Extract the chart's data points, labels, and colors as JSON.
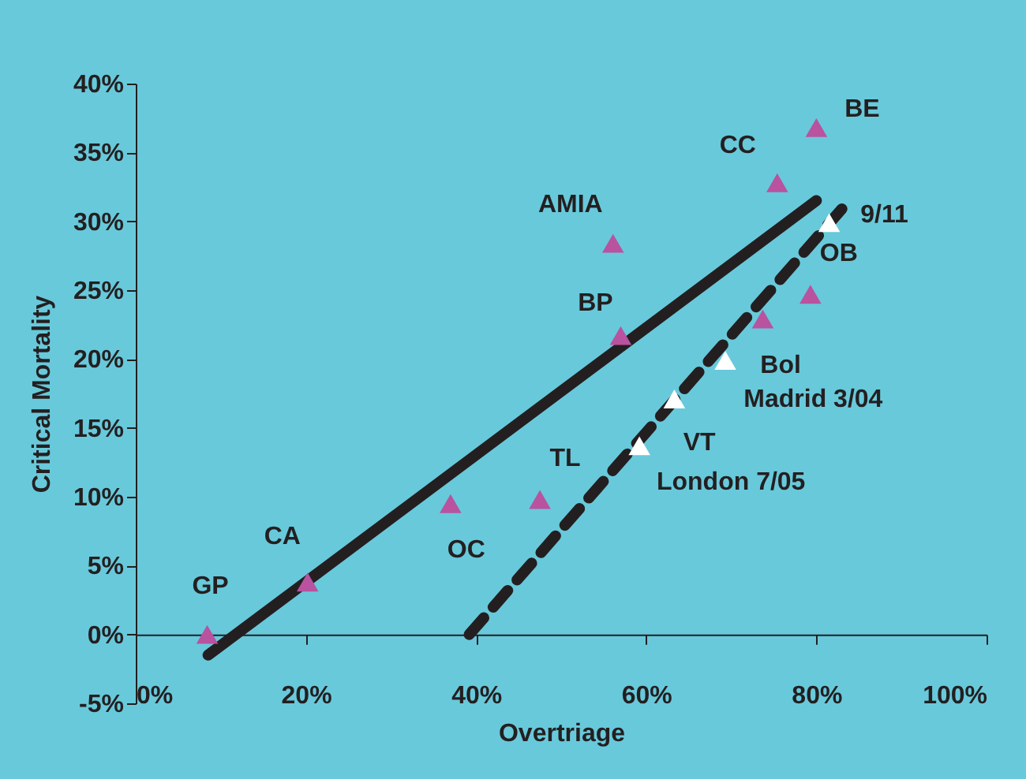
{
  "chart_data": {
    "type": "scatter",
    "xlabel": "Overtriage",
    "ylabel": "Critical Mortality",
    "xlim": [
      0,
      100
    ],
    "xticks": [
      {
        "value": 0,
        "label": "0%"
      },
      {
        "value": 20,
        "label": "20%"
      },
      {
        "value": 40,
        "label": "40%"
      },
      {
        "value": 60,
        "label": "60%"
      },
      {
        "value": 80,
        "label": "80%"
      },
      {
        "value": 100,
        "label": "100%"
      }
    ],
    "ylim": [
      -5,
      40
    ],
    "yticks": [
      {
        "value": -5,
        "label": "-5%"
      },
      {
        "value": 0,
        "label": "0%"
      },
      {
        "value": 5,
        "label": "5%"
      },
      {
        "value": 10,
        "label": "10%"
      },
      {
        "value": 15,
        "label": "15%"
      },
      {
        "value": 20,
        "label": "20%"
      },
      {
        "value": 25,
        "label": "25%"
      },
      {
        "value": 30,
        "label": "30%"
      },
      {
        "value": 35,
        "label": "35%"
      },
      {
        "value": 40,
        "label": "40%"
      }
    ],
    "grid": false,
    "marker": "triangle",
    "series": [
      {
        "type": "line",
        "color": "#231f20",
        "line_style": "solid",
        "marker": "none",
        "x": [
          8.5,
          80
        ],
        "values": [
          -1.5,
          31.5
        ]
      },
      {
        "type": "line",
        "color": "#231f20",
        "line_style": "dashed",
        "marker": "none",
        "x": [
          39.2,
          83
        ],
        "values": [
          0,
          30.9
        ]
      },
      {
        "color": "#b9529f",
        "x": [
          8.4,
          20.2,
          37,
          47.5,
          56.1,
          57,
          75.4,
          80,
          79.3,
          73.7
        ],
        "values": [
          0,
          3.8,
          9.5,
          9.8,
          28.4,
          21.7,
          32.8,
          36.8,
          24.7,
          22.9
        ]
      },
      {
        "color": "#ffffff",
        "x": [
          81.5,
          69.3,
          63.3,
          59.2
        ],
        "values": [
          29.9,
          19.9,
          17.1,
          13.7
        ]
      }
    ],
    "annotations": [
      {
        "text": "GP",
        "x": 8.4,
        "y": 0
      },
      {
        "text": "CA",
        "x": 20.2,
        "y": 3.8
      },
      {
        "text": "OC",
        "x": 37,
        "y": 9.5
      },
      {
        "text": "TL",
        "x": 47.5,
        "y": 9.8
      },
      {
        "text": "AMIA",
        "x": 56.1,
        "y": 28.4
      },
      {
        "text": "BP",
        "x": 57,
        "y": 21.7
      },
      {
        "text": "CC",
        "x": 75.4,
        "y": 32.8
      },
      {
        "text": "BE",
        "x": 80,
        "y": 36.8
      },
      {
        "text": "OB",
        "x": 79.3,
        "y": 24.7
      },
      {
        "text": "9/11",
        "x": 81.5,
        "y": 29.9
      },
      {
        "text": "Bol",
        "x": 69.3,
        "y": 19.9
      },
      {
        "text": "Madrid 3/04",
        "x": 63.3,
        "y": 17.1
      },
      {
        "text": "VT",
        "x": 59.2,
        "y": 13.7
      },
      {
        "text": "London 7/05",
        "x": 59.2,
        "y": 13.7
      }
    ]
  }
}
